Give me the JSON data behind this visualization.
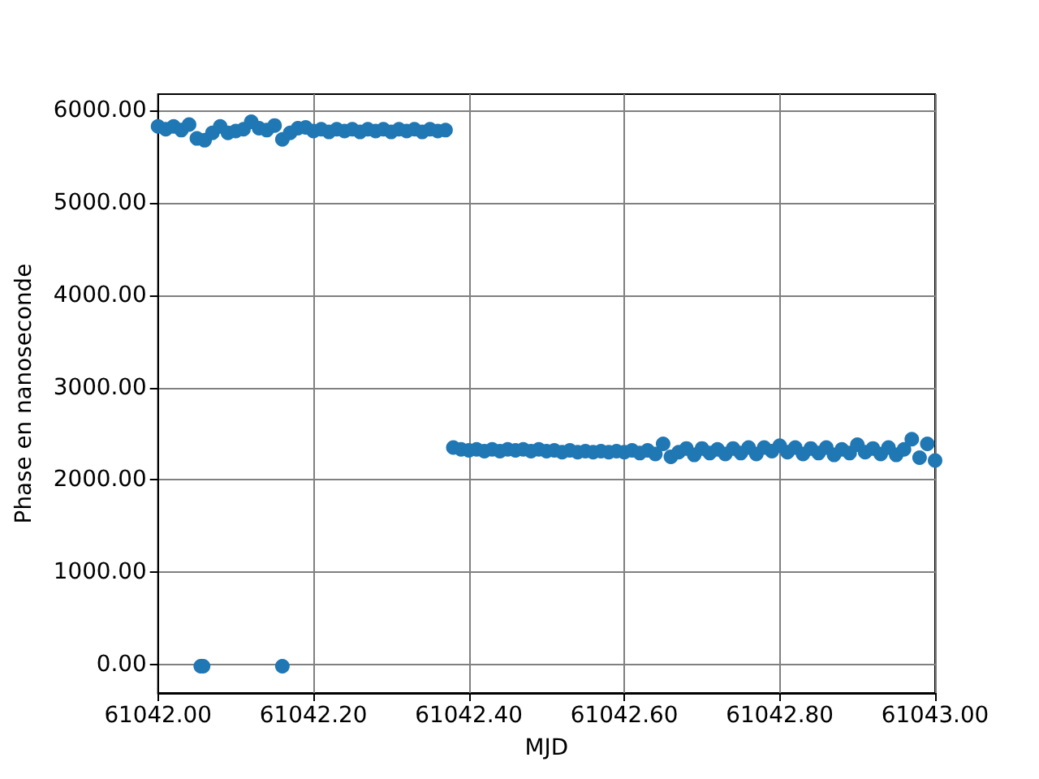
{
  "chart_data": {
    "type": "scatter",
    "xlabel": "MJD",
    "ylabel": "Phase en nanoseconde",
    "xlim": [
      61042.0,
      61043.0
    ],
    "xticks": [
      {
        "value": 61042.0,
        "label": "61042.00"
      },
      {
        "value": 61042.2,
        "label": "61042.20"
      },
      {
        "value": 61042.4,
        "label": "61042.40"
      },
      {
        "value": 61042.6,
        "label": "61042.60"
      },
      {
        "value": 61042.8,
        "label": "61042.80"
      },
      {
        "value": 61043.0,
        "label": "61043.00"
      }
    ],
    "ylim": [
      -310,
      6180
    ],
    "yticks": [
      {
        "value": 0,
        "label": "0.00"
      },
      {
        "value": 1000,
        "label": "1000.00"
      },
      {
        "value": 2000,
        "label": "2000.00"
      },
      {
        "value": 3000,
        "label": "3000.00"
      },
      {
        "value": 4000,
        "label": "4000.00"
      },
      {
        "value": 5000,
        "label": "5000.00"
      },
      {
        "value": 6000,
        "label": "6000.00"
      }
    ],
    "grid": true,
    "marker": "circle",
    "series": [
      {
        "color": "#1f77b4",
        "x": [
          61042.0,
          61042.01,
          61042.02,
          61042.03,
          61042.04,
          61042.05,
          61042.06,
          61042.07,
          61042.08,
          61042.09,
          61042.1,
          61042.11,
          61042.12,
          61042.13,
          61042.14,
          61042.15,
          61042.16,
          61042.17,
          61042.18,
          61042.19,
          61042.2,
          61042.21,
          61042.22,
          61042.23,
          61042.24,
          61042.25,
          61042.26,
          61042.27,
          61042.28,
          61042.29,
          61042.3,
          61042.31,
          61042.32,
          61042.33,
          61042.34,
          61042.35,
          61042.36,
          61042.37,
          61042.055,
          61042.058,
          61042.16,
          61042.38,
          61042.39,
          61042.4,
          61042.41,
          61042.42,
          61042.43,
          61042.44,
          61042.45,
          61042.46,
          61042.47,
          61042.48,
          61042.49,
          61042.5,
          61042.51,
          61042.52,
          61042.53,
          61042.54,
          61042.55,
          61042.56,
          61042.57,
          61042.58,
          61042.59,
          61042.6,
          61042.61,
          61042.62,
          61042.63,
          61042.64,
          61042.65,
          61042.66,
          61042.67,
          61042.68,
          61042.69,
          61042.7,
          61042.71,
          61042.72,
          61042.73,
          61042.74,
          61042.75,
          61042.76,
          61042.77,
          61042.78,
          61042.79,
          61042.8,
          61042.81,
          61042.82,
          61042.83,
          61042.84,
          61042.85,
          61042.86,
          61042.87,
          61042.88,
          61042.89,
          61042.9,
          61042.91,
          61042.92,
          61042.93,
          61042.94,
          61042.95,
          61042.96,
          61042.97,
          61042.98,
          61042.99,
          61043.0
        ],
        "values": [
          5830,
          5800,
          5830,
          5790,
          5850,
          5700,
          5680,
          5760,
          5830,
          5760,
          5780,
          5800,
          5880,
          5810,
          5790,
          5840,
          5690,
          5760,
          5810,
          5820,
          5780,
          5800,
          5770,
          5800,
          5780,
          5800,
          5770,
          5800,
          5780,
          5800,
          5770,
          5800,
          5780,
          5800,
          5770,
          5800,
          5780,
          5790,
          -20,
          -20,
          -20,
          2350,
          2330,
          2320,
          2330,
          2310,
          2330,
          2310,
          2330,
          2320,
          2330,
          2310,
          2330,
          2310,
          2320,
          2300,
          2320,
          2300,
          2310,
          2300,
          2310,
          2300,
          2310,
          2300,
          2320,
          2290,
          2320,
          2280,
          2390,
          2250,
          2300,
          2340,
          2270,
          2340,
          2290,
          2330,
          2280,
          2340,
          2290,
          2350,
          2280,
          2350,
          2310,
          2370,
          2300,
          2350,
          2280,
          2340,
          2290,
          2350,
          2270,
          2330,
          2290,
          2380,
          2300,
          2340,
          2280,
          2350,
          2270,
          2330,
          2440,
          2240,
          2390,
          2210
        ]
      }
    ]
  }
}
